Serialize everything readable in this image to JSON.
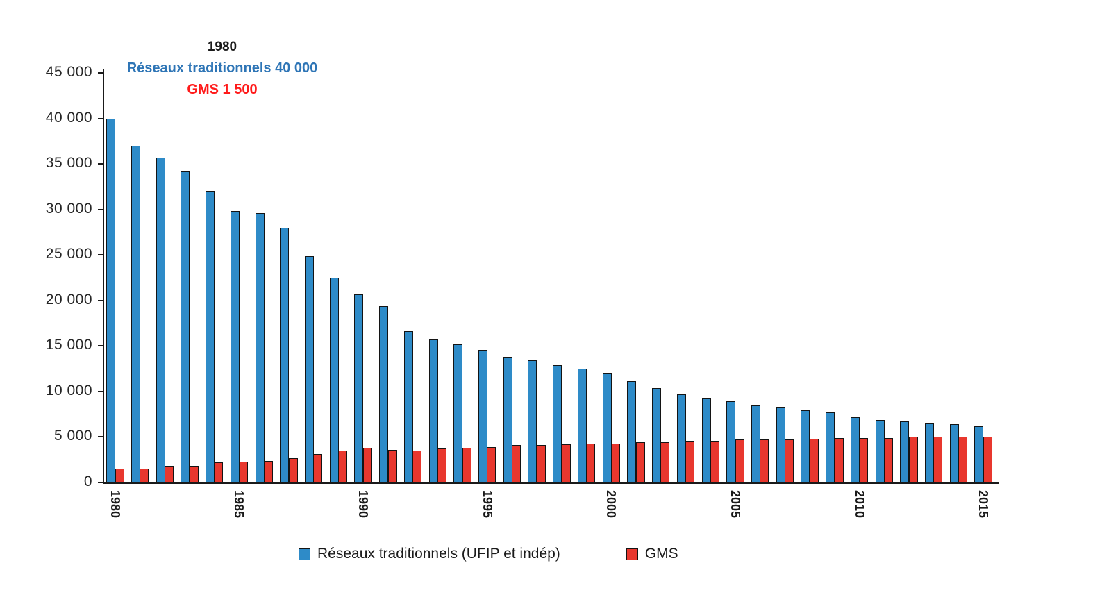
{
  "colors": {
    "bar_blue": "#2E8BC8",
    "bar_red": "#E8372E",
    "annotation_blue": "#2E75B6",
    "annotation_red": "#FF1A1A",
    "axis": "#1a1a1a"
  },
  "annotation": {
    "year": "1980",
    "reseaux": "Réseaux traditionnels 40 000",
    "gms": "GMS 1 500"
  },
  "chart_data": {
    "type": "bar",
    "title": "",
    "xlabel": "",
    "ylabel": "",
    "ylim": [
      0,
      45000
    ],
    "grid": false,
    "legend_position": "bottom",
    "categories": [
      1980,
      1981,
      1982,
      1983,
      1984,
      1985,
      1986,
      1987,
      1988,
      1989,
      1990,
      1991,
      1992,
      1993,
      1994,
      1995,
      1996,
      1997,
      1998,
      1999,
      2000,
      2001,
      2002,
      2003,
      2004,
      2005,
      2006,
      2007,
      2008,
      2009,
      2010,
      2011,
      2012,
      2013,
      2014,
      2015
    ],
    "x_tick_years": [
      1980,
      1985,
      1990,
      1995,
      2000,
      2005,
      2010,
      2015
    ],
    "y_ticks": [
      {
        "value": 0,
        "label": "0"
      },
      {
        "value": 5000,
        "label": "5 000"
      },
      {
        "value": 10000,
        "label": "10 000"
      },
      {
        "value": 15000,
        "label": "15 000"
      },
      {
        "value": 20000,
        "label": "20 000"
      },
      {
        "value": 25000,
        "label": "25 000"
      },
      {
        "value": 30000,
        "label": "30 000"
      },
      {
        "value": 35000,
        "label": "35 000"
      },
      {
        "value": 40000,
        "label": "40 000"
      },
      {
        "value": 45000,
        "label": "45 000"
      }
    ],
    "series": [
      {
        "key": "reseaux-traditionnels",
        "name": "Réseaux traditionnels (UFIP et indép)",
        "color": "#2E8BC8",
        "values": [
          40000,
          37000,
          35700,
          34200,
          32000,
          29800,
          29600,
          28000,
          24900,
          22500,
          20700,
          19400,
          16600,
          15700,
          15200,
          14600,
          13800,
          13400,
          12900,
          12500,
          12000,
          11100,
          10400,
          9700,
          9200,
          8900,
          8500,
          8300,
          7900,
          7700,
          7200,
          6900,
          6700,
          6500,
          6400,
          6200
        ]
      },
      {
        "key": "gms",
        "name": "GMS",
        "color": "#E8372E",
        "values": [
          1500,
          1500,
          1800,
          1800,
          2200,
          2300,
          2400,
          2700,
          3100,
          3500,
          3800,
          3600,
          3500,
          3700,
          3800,
          3900,
          4100,
          4100,
          4200,
          4300,
          4300,
          4400,
          4400,
          4600,
          4600,
          4700,
          4700,
          4700,
          4800,
          4900,
          4900,
          4900,
          5000,
          5000,
          5000,
          5000
        ]
      }
    ]
  }
}
